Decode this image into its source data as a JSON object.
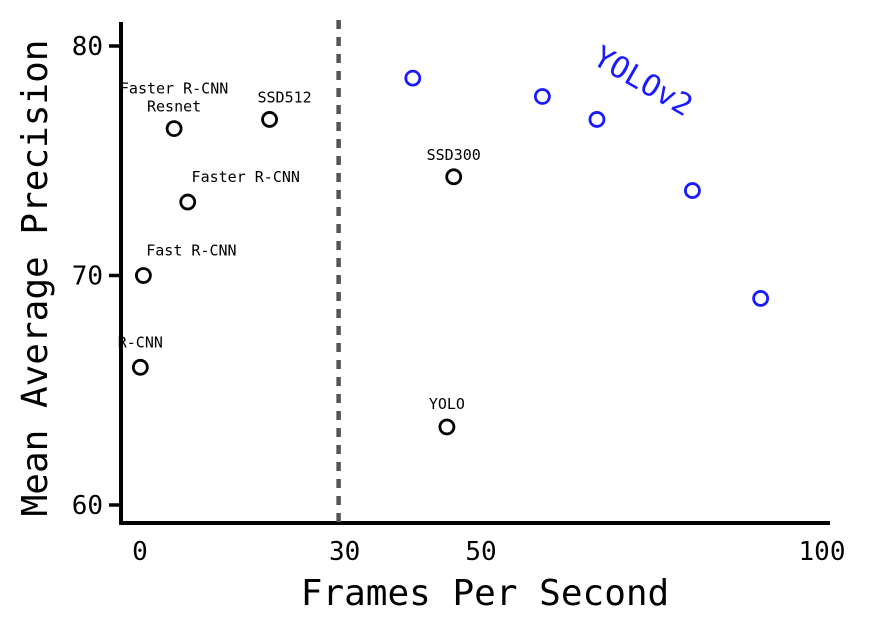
{
  "chart_data": {
    "type": "scatter",
    "title": "",
    "xlabel": "Frames Per Second",
    "ylabel": "Mean Average Precision",
    "xlim": [
      0,
      100
    ],
    "ylim": [
      60,
      81
    ],
    "x_ticks": [
      {
        "value": 0,
        "label": "0"
      },
      {
        "value": 30,
        "label": "30"
      },
      {
        "value": 50,
        "label": "50"
      },
      {
        "value": 100,
        "label": "100"
      }
    ],
    "y_ticks": [
      {
        "value": 60,
        "label": "60"
      },
      {
        "value": 70,
        "label": "70"
      },
      {
        "value": 80,
        "label": "80"
      }
    ],
    "reference_line": {
      "x": 30,
      "style": "dashed",
      "color": "#555555"
    },
    "grid": false,
    "series": [
      {
        "name": "",
        "color": "#000000",
        "points": [
          {
            "x": 0.05,
            "y": 66.0,
            "label": "R-CNN"
          },
          {
            "x": 0.5,
            "y": 70.0,
            "label": "Fast R-CNN"
          },
          {
            "x": 7,
            "y": 73.2,
            "label": "Faster R-CNN"
          },
          {
            "x": 5,
            "y": 76.4,
            "label": "Faster R-CNN\nResnet"
          },
          {
            "x": 19,
            "y": 76.8,
            "label": "SSD512"
          },
          {
            "x": 46,
            "y": 74.3,
            "label": "SSD300"
          },
          {
            "x": 45,
            "y": 63.4,
            "label": "YOLO"
          }
        ]
      },
      {
        "name": "YOLOv2",
        "color": "#1a1aff",
        "points": [
          {
            "x": 40,
            "y": 78.6
          },
          {
            "x": 59,
            "y": 77.8
          },
          {
            "x": 67,
            "y": 76.8
          },
          {
            "x": 81,
            "y": 73.7
          },
          {
            "x": 91,
            "y": 69.0
          }
        ]
      }
    ]
  }
}
